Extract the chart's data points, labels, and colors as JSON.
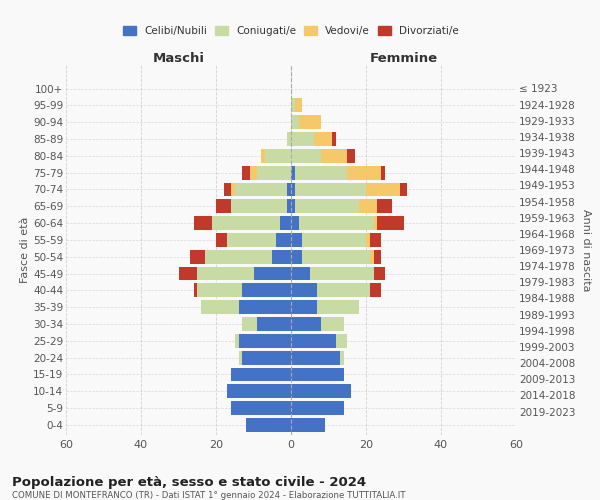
{
  "age_groups": [
    "0-4",
    "5-9",
    "10-14",
    "15-19",
    "20-24",
    "25-29",
    "30-34",
    "35-39",
    "40-44",
    "45-49",
    "50-54",
    "55-59",
    "60-64",
    "65-69",
    "70-74",
    "75-79",
    "80-84",
    "85-89",
    "90-94",
    "95-99",
    "100+"
  ],
  "birth_years": [
    "2019-2023",
    "2014-2018",
    "2009-2013",
    "2004-2008",
    "1999-2003",
    "1994-1998",
    "1989-1993",
    "1984-1988",
    "1979-1983",
    "1974-1978",
    "1969-1973",
    "1964-1968",
    "1959-1963",
    "1954-1958",
    "1949-1953",
    "1944-1948",
    "1939-1943",
    "1934-1938",
    "1929-1933",
    "1924-1928",
    "≤ 1923"
  ],
  "males": {
    "celibi": [
      12,
      16,
      17,
      16,
      13,
      14,
      9,
      14,
      13,
      10,
      5,
      4,
      3,
      1,
      1,
      0,
      0,
      0,
      0,
      0,
      0
    ],
    "coniugati": [
      0,
      0,
      0,
      0,
      1,
      1,
      4,
      10,
      12,
      15,
      18,
      13,
      18,
      15,
      14,
      9,
      7,
      1,
      0,
      0,
      0
    ],
    "vedovi": [
      0,
      0,
      0,
      0,
      0,
      0,
      0,
      0,
      0,
      0,
      0,
      0,
      0,
      0,
      1,
      2,
      1,
      0,
      0,
      0,
      0
    ],
    "divorziati": [
      0,
      0,
      0,
      0,
      0,
      0,
      0,
      0,
      1,
      5,
      4,
      3,
      5,
      4,
      2,
      2,
      0,
      0,
      0,
      0,
      0
    ]
  },
  "females": {
    "nubili": [
      9,
      14,
      16,
      14,
      13,
      12,
      8,
      7,
      7,
      5,
      3,
      3,
      2,
      1,
      1,
      1,
      0,
      0,
      0,
      0,
      0
    ],
    "coniugate": [
      0,
      0,
      0,
      0,
      1,
      3,
      6,
      11,
      14,
      17,
      18,
      17,
      20,
      17,
      19,
      14,
      8,
      6,
      2,
      1,
      0
    ],
    "vedove": [
      0,
      0,
      0,
      0,
      0,
      0,
      0,
      0,
      0,
      0,
      1,
      1,
      1,
      5,
      9,
      9,
      7,
      5,
      6,
      2,
      0
    ],
    "divorziate": [
      0,
      0,
      0,
      0,
      0,
      0,
      0,
      0,
      3,
      3,
      2,
      3,
      7,
      4,
      2,
      1,
      2,
      1,
      0,
      0,
      0
    ]
  },
  "colors": {
    "celibi": "#4472c4",
    "coniugati": "#c8dba4",
    "vedovi": "#f5c96a",
    "divorziati": "#c0392b"
  },
  "xlim": 60,
  "title": "Popolazione per età, sesso e stato civile - 2024",
  "subtitle": "COMUNE DI MONTEFRANCO (TR) - Dati ISTAT 1° gennaio 2024 - Elaborazione TUTTITALIA.IT",
  "ylabel_left": "Fasce di età",
  "ylabel_right": "Anni di nascita",
  "xlabel_left": "Maschi",
  "xlabel_right": "Femmine",
  "legend_labels": [
    "Celibi/Nubili",
    "Coniugati/e",
    "Vedovi/e",
    "Divorziati/e"
  ],
  "bg_color": "#f9f9f9",
  "grid_color": "#cccccc",
  "bar_height": 0.82
}
